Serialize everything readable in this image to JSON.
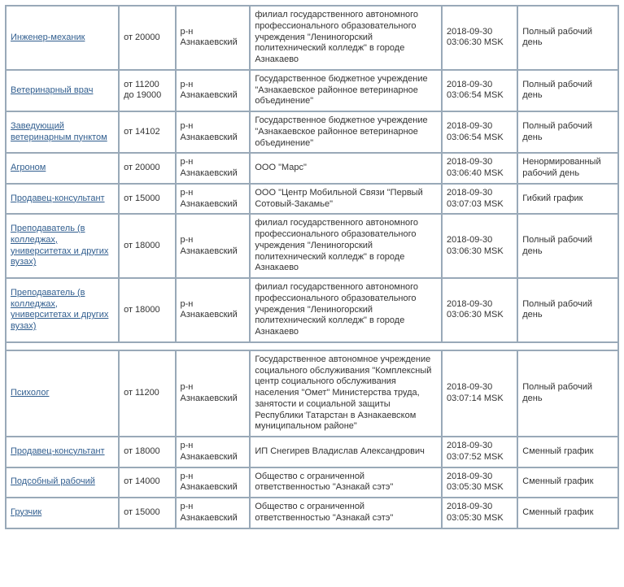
{
  "table": {
    "columns": [
      "title",
      "salary",
      "region",
      "organization",
      "datetime",
      "schedule"
    ],
    "rows": [
      {
        "title": "Инженер-механик",
        "salary": "от 20000",
        "region": "р-н Азнакаевский",
        "organization": "филиал государственного автономного профессионального образовательного учреждения \"Лениногорский политехнический колледж\" в городе Азнакаево",
        "datetime": "2018-09-30 03:06:30 MSK",
        "schedule": "Полный рабочий день"
      },
      {
        "title": "Ветеринарный врач",
        "salary": "от 11200 до 19000",
        "region": "р-н Азнакаевский",
        "organization": "Государственное бюджетное учреждение \"Азнакаевское районное ветеринарное объединение\"",
        "datetime": "2018-09-30 03:06:54 MSK",
        "schedule": "Полный рабочий день"
      },
      {
        "title": "Заведующий ветеринарным пунктом",
        "salary": "от 14102",
        "region": "р-н Азнакаевский",
        "organization": "Государственное бюджетное учреждение \"Азнакаевское районное ветеринарное объединение\"",
        "datetime": "2018-09-30 03:06:54 MSK",
        "schedule": "Полный рабочий день"
      },
      {
        "title": "Агроном",
        "salary": "от 20000",
        "region": "р-н Азнакаевский",
        "organization": "ООО \"Марс\"",
        "datetime": "2018-09-30 03:06:40 MSK",
        "schedule": "Ненормированный рабочий день"
      },
      {
        "title": "Продавец-консультант",
        "salary": "от 15000",
        "region": "р-н Азнакаевский",
        "organization": "ООО \"Центр Мобильной Связи \"Первый Сотовый-Закамье\"",
        "datetime": "2018-09-30 03:07:03 MSK",
        "schedule": "Гибкий график"
      },
      {
        "title": "Преподаватель (в колледжах, университетах и других вузах)",
        "salary": "от 18000",
        "region": "р-н Азнакаевский",
        "organization": "филиал государственного автономного профессионального образовательного учреждения \"Лениногорский политехнический колледж\" в городе Азнакаево",
        "datetime": "2018-09-30 03:06:30 MSK",
        "schedule": "Полный рабочий день"
      },
      {
        "title": "Преподаватель (в колледжах, университетах и других вузах)",
        "salary": "от 18000",
        "region": "р-н Азнакаевский",
        "organization": "филиал государственного автономного профессионального образовательного учреждения \"Лениногорский политехнический колледж\" в городе Азнакаево",
        "datetime": "2018-09-30 03:06:30 MSK",
        "schedule": "Полный рабочий день"
      },
      {
        "spacer": true
      },
      {
        "title": "Психолог",
        "salary": "от 11200",
        "region": "р-н Азнакаевский",
        "organization": "Государственное автономное учреждение социального обслуживания \"Комплексный центр социального обслуживания населения \"Омет\" Министерства труда, занятости и социальной защиты Республики Татарстан в Азнакаевском муниципальном районе\"",
        "datetime": "2018-09-30 03:07:14 MSK",
        "schedule": "Полный рабочий день"
      },
      {
        "title": "Продавец-консультант",
        "salary": "от 18000",
        "region": "р-н Азнакаевский",
        "organization": "ИП Снегирев Владислав Александрович",
        "datetime": "2018-09-30 03:07:52 MSK",
        "schedule": "Сменный график"
      },
      {
        "title": "Подсобный рабочий",
        "salary": "от 14000",
        "region": "р-н Азнакаевский",
        "organization": "Общество с ограниченной ответственностью \"Азнакай сэтэ\"",
        "datetime": "2018-09-30 03:05:30 MSK",
        "schedule": "Сменный график"
      },
      {
        "title": "Грузчик",
        "salary": "от 15000",
        "region": "р-н Азнакаевский",
        "organization": "Общество с ограниченной ответственностью \"Азнакай сэтэ\"",
        "datetime": "2018-09-30 03:05:30 MSK",
        "schedule": "Сменный график"
      }
    ]
  },
  "style": {
    "link_color": "#315e8f",
    "border_color": "#99a9b8",
    "cell_bg": "#ffffff",
    "font_size_pt": 11
  }
}
